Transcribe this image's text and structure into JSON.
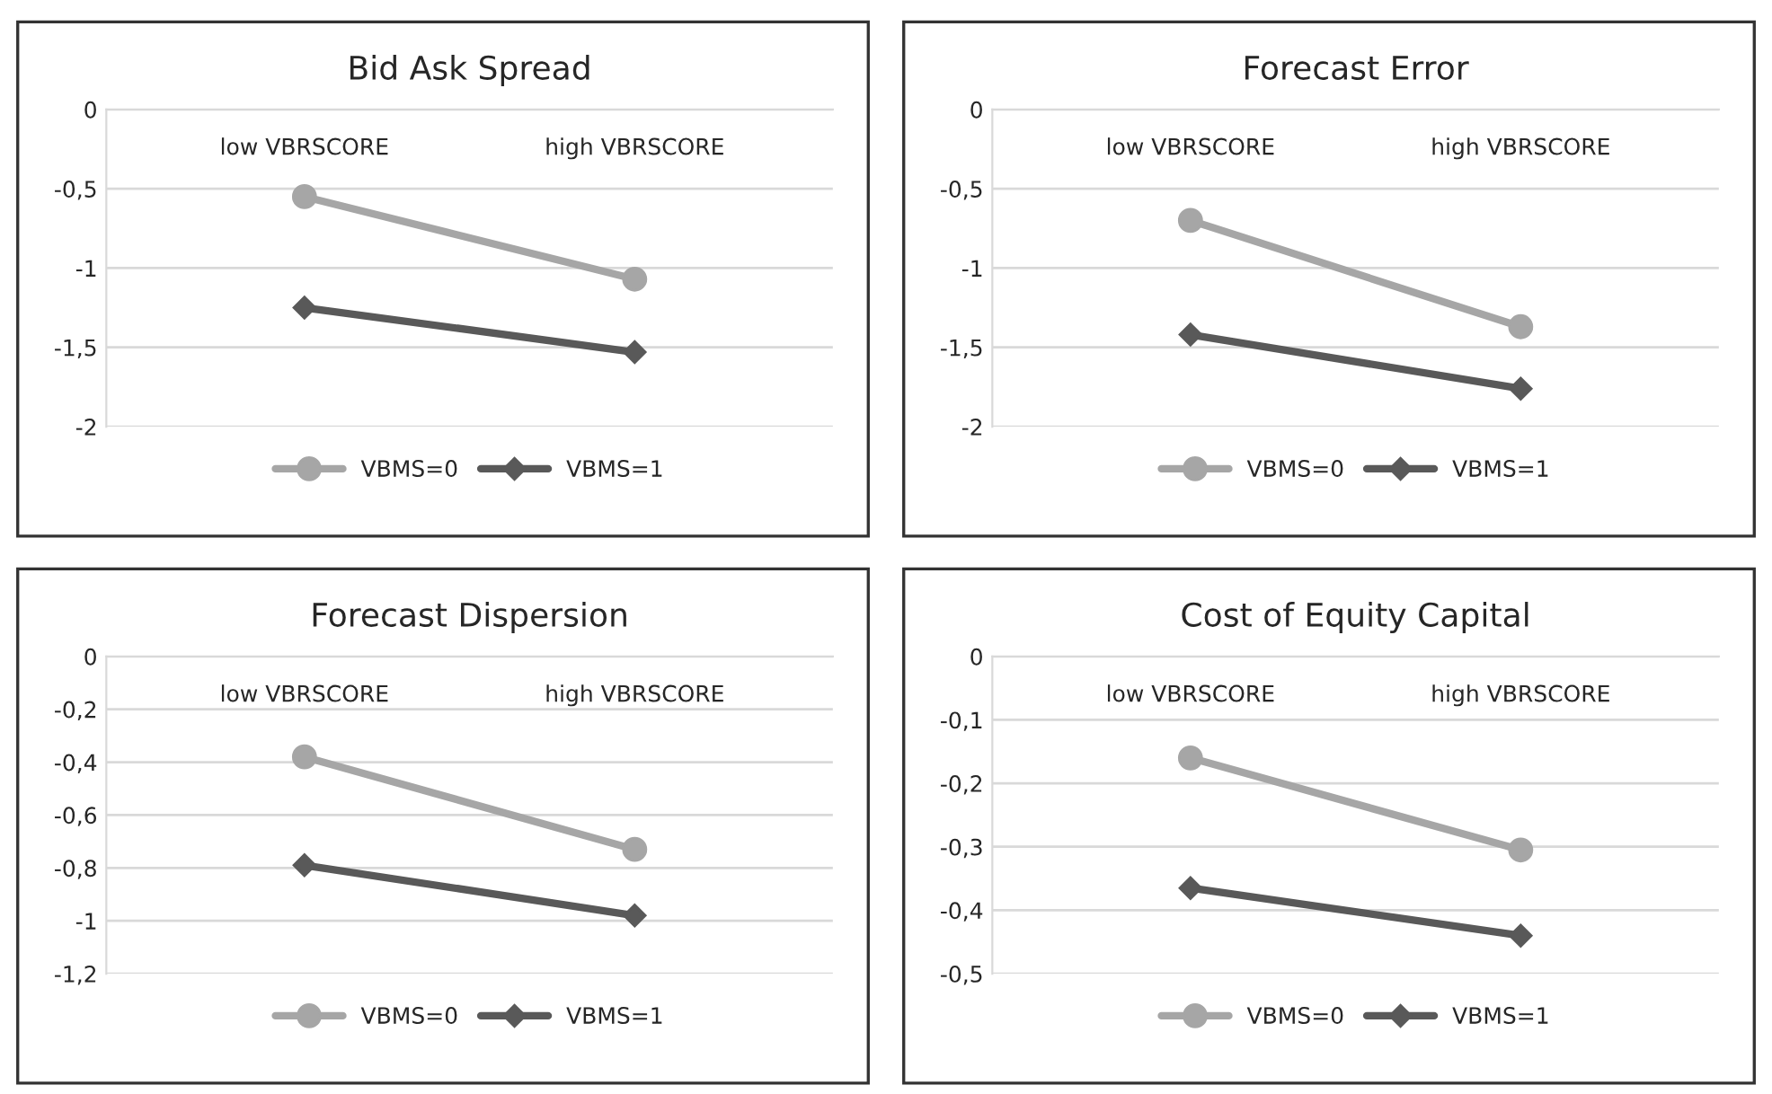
{
  "chart_data": [
    {
      "type": "line",
      "title": "Bid Ask Spread",
      "categories": [
        "low VBRSCORE",
        "high VBRSCORE"
      ],
      "ylim": [
        -2,
        0
      ],
      "yticks": [
        0,
        {
          "value": -0.5,
          "label": "-0,5"
        },
        -1,
        {
          "value": -1.5,
          "label": "-1,5"
        },
        -2
      ],
      "grid": "y",
      "legend": "bottom",
      "series": [
        {
          "name": "VBMS=0",
          "color": "#a6a6a6",
          "marker": "circle",
          "values": [
            -0.55,
            -1.07
          ]
        },
        {
          "name": "VBMS=1",
          "color": "#595959",
          "marker": "diamond",
          "values": [
            -1.25,
            -1.53
          ]
        }
      ]
    },
    {
      "type": "line",
      "title": "Forecast Error",
      "categories": [
        "low VBRSCORE",
        "high VBRSCORE"
      ],
      "ylim": [
        -2,
        0
      ],
      "yticks": [
        0,
        {
          "value": -0.5,
          "label": "-0,5"
        },
        -1,
        {
          "value": -1.5,
          "label": "-1,5"
        },
        -2
      ],
      "grid": "y",
      "legend": "bottom",
      "series": [
        {
          "name": "VBMS=0",
          "color": "#a6a6a6",
          "marker": "circle",
          "values": [
            -0.7,
            -1.37
          ]
        },
        {
          "name": "VBMS=1",
          "color": "#595959",
          "marker": "diamond",
          "values": [
            -1.42,
            -1.76
          ]
        }
      ]
    },
    {
      "type": "line",
      "title": "Forecast Dispersion",
      "categories": [
        "low VBRSCORE",
        "high VBRSCORE"
      ],
      "ylim": [
        -1.2,
        0
      ],
      "yticks": [
        0,
        {
          "value": -0.2,
          "label": "-0,2"
        },
        {
          "value": -0.4,
          "label": "-0,4"
        },
        {
          "value": -0.6,
          "label": "-0,6"
        },
        {
          "value": -0.8,
          "label": "-0,8"
        },
        -1,
        {
          "value": -1.2,
          "label": "-1,2"
        }
      ],
      "grid": "y",
      "legend": "bottom",
      "series": [
        {
          "name": "VBMS=0",
          "color": "#a6a6a6",
          "marker": "circle",
          "values": [
            -0.38,
            -0.73
          ]
        },
        {
          "name": "VBMS=1",
          "color": "#595959",
          "marker": "diamond",
          "values": [
            -0.79,
            -0.98
          ]
        }
      ]
    },
    {
      "type": "line",
      "title": "Cost of Equity Capital",
      "categories": [
        "low VBRSCORE",
        "high VBRSCORE"
      ],
      "ylim": [
        -0.5,
        0
      ],
      "yticks": [
        0,
        {
          "value": -0.1,
          "label": "-0,1"
        },
        {
          "value": -0.2,
          "label": "-0,2"
        },
        {
          "value": -0.3,
          "label": "-0,3"
        },
        {
          "value": -0.4,
          "label": "-0,4"
        },
        {
          "value": -0.5,
          "label": "-0,5"
        }
      ],
      "grid": "y",
      "legend": "bottom",
      "series": [
        {
          "name": "VBMS=0",
          "color": "#a6a6a6",
          "marker": "circle",
          "values": [
            -0.16,
            -0.305
          ]
        },
        {
          "name": "VBMS=1",
          "color": "#595959",
          "marker": "diamond",
          "values": [
            -0.365,
            -0.44
          ]
        }
      ]
    }
  ]
}
